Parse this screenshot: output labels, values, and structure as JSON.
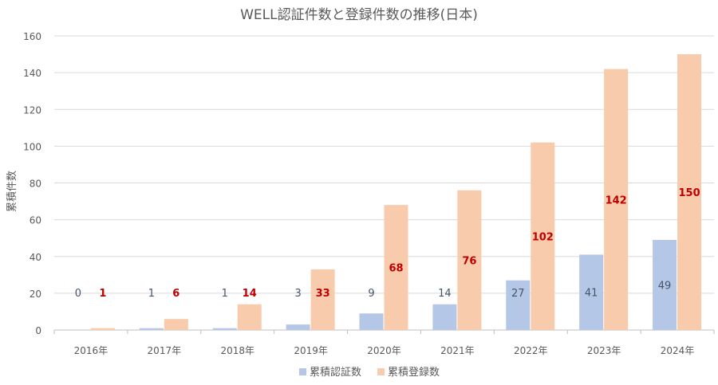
{
  "chart_data": {
    "type": "bar",
    "title": "WELL認証件数と登録件数の推移(日本)",
    "xlabel": "",
    "ylabel": "累積件数",
    "ylim": [
      0,
      160
    ],
    "yticks": [
      0,
      20,
      40,
      60,
      80,
      100,
      120,
      140,
      160
    ],
    "grid": true,
    "legend_position": "bottom",
    "categories": [
      "2016年",
      "2017年",
      "2018年",
      "2019年",
      "2020年",
      "2021年",
      "2022年",
      "2023年",
      "2024年"
    ],
    "series": [
      {
        "name": "累積認証数",
        "values": [
          0,
          1,
          1,
          3,
          9,
          14,
          27,
          41,
          49
        ],
        "color": "#b4c7e7",
        "label_color": "#44546a"
      },
      {
        "name": "累積登録数",
        "values": [
          1,
          6,
          14,
          33,
          68,
          76,
          102,
          142,
          150
        ],
        "color": "#f8cbad",
        "label_color": "#c00000"
      }
    ]
  }
}
